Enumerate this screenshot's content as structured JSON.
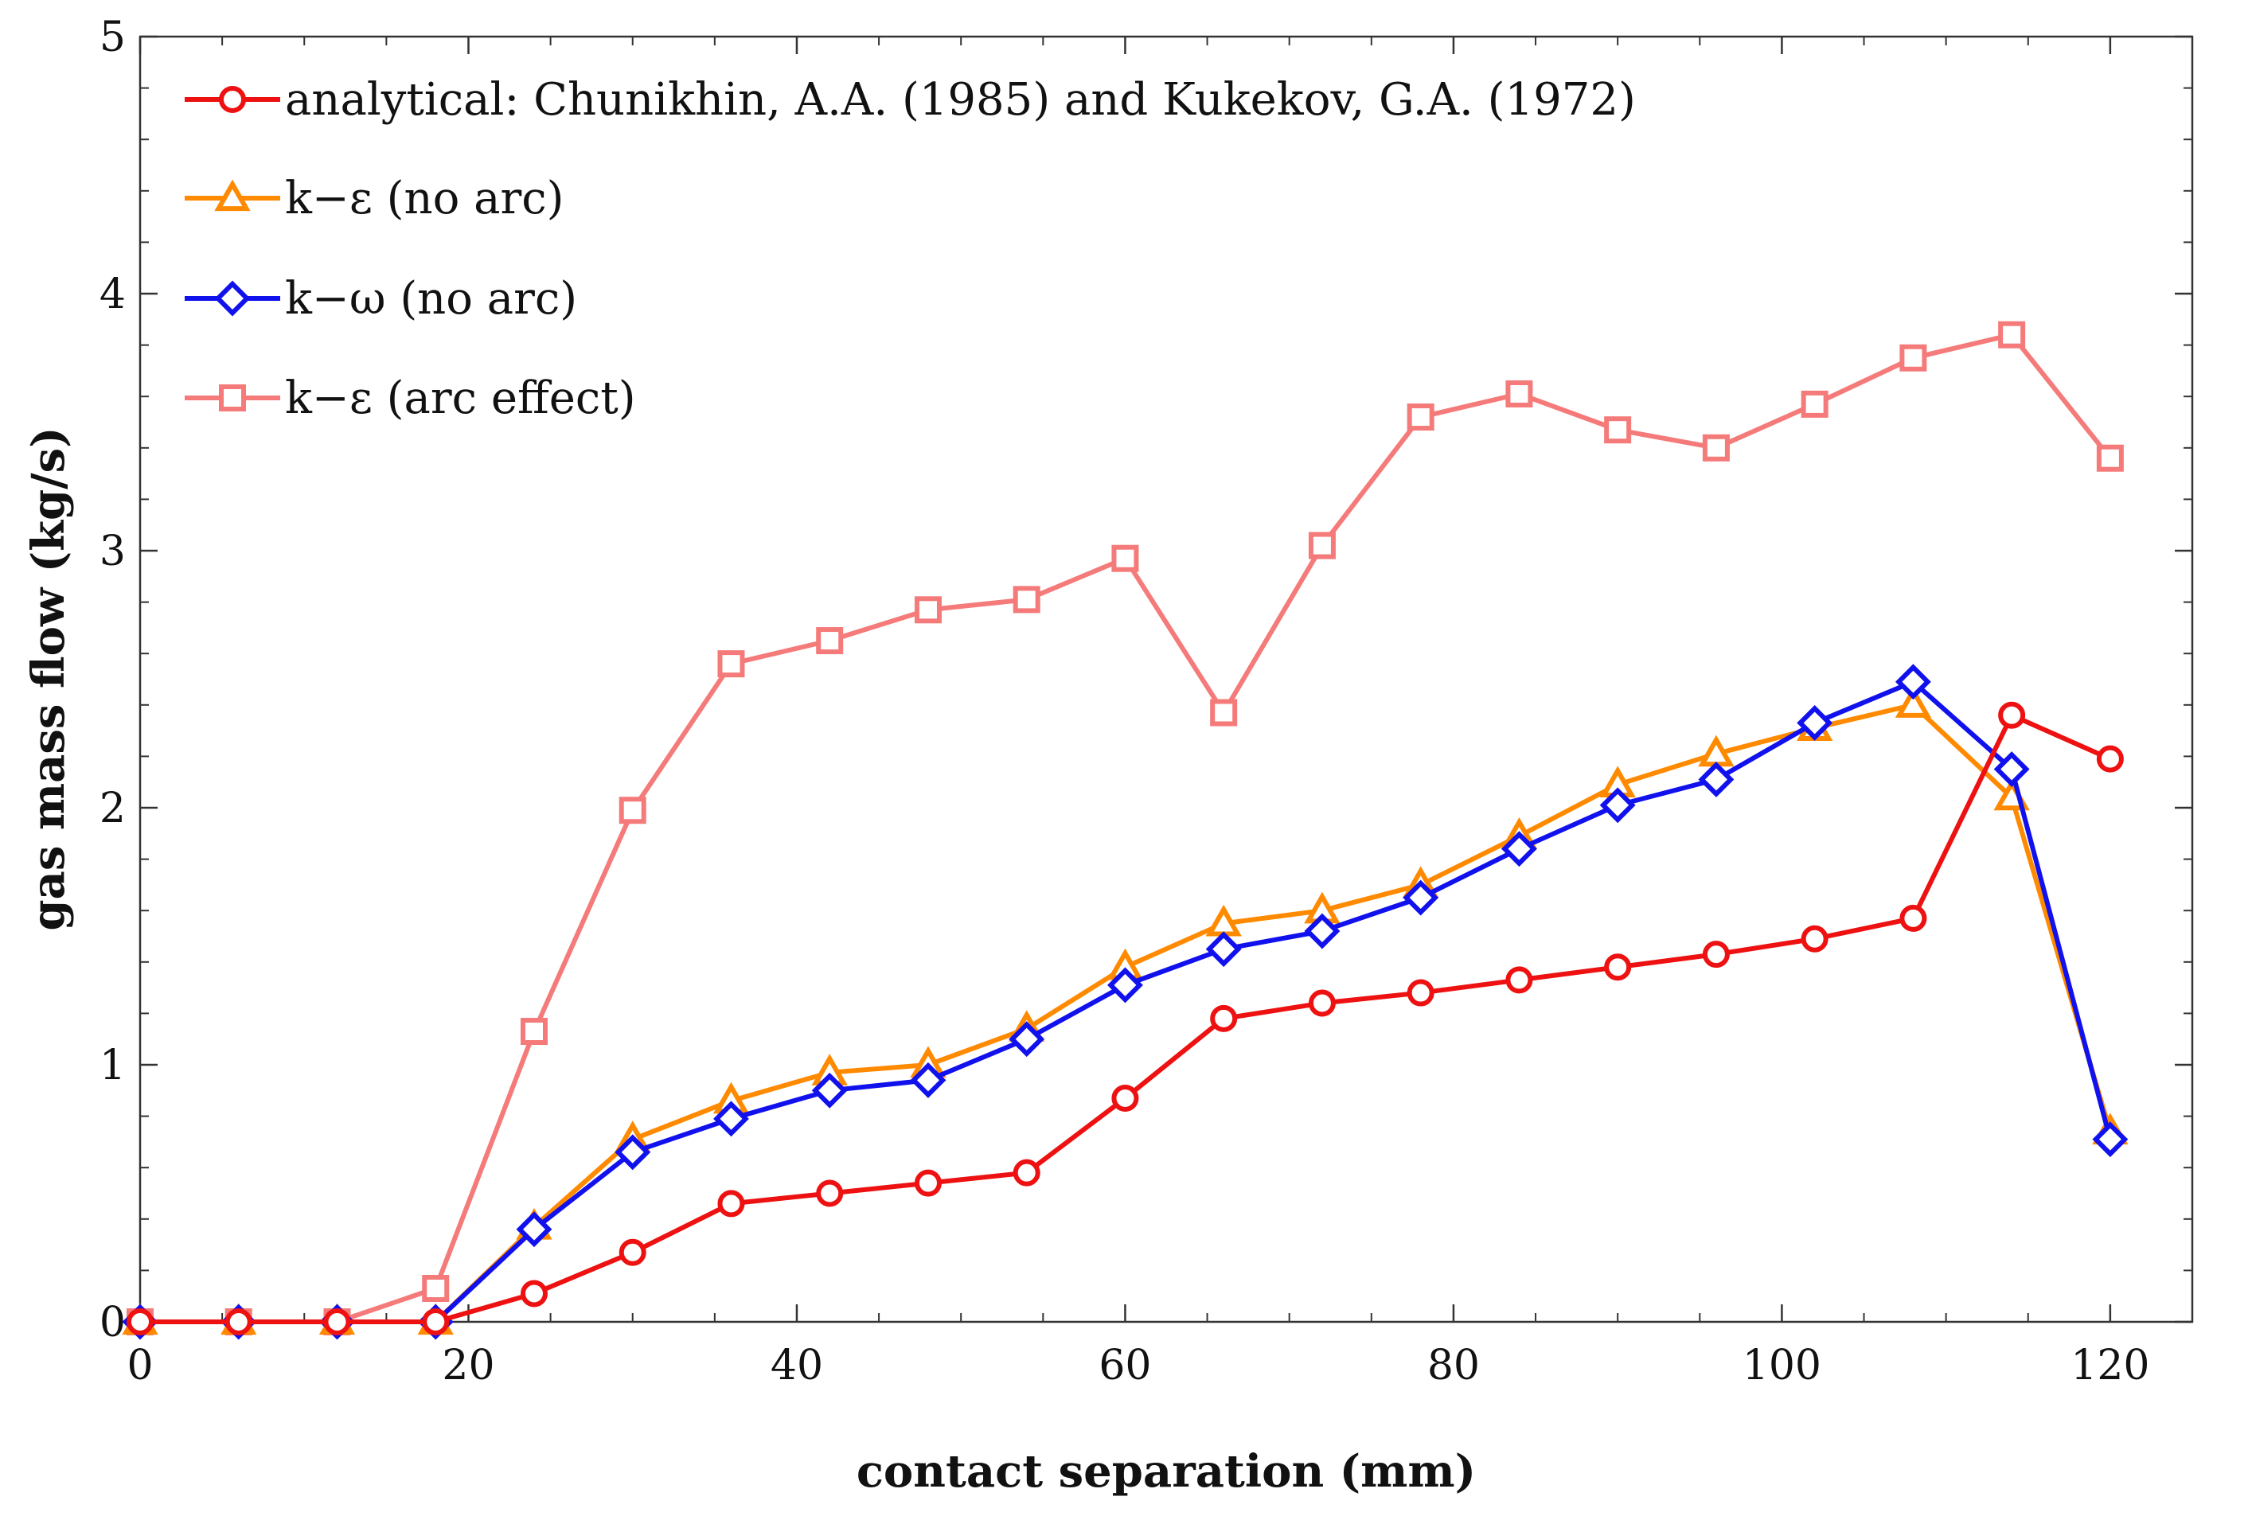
{
  "chart_data": {
    "type": "line",
    "title": "",
    "xlabel": "contact separation (mm)",
    "ylabel": "gas mass flow (kg/s)",
    "xlim": [
      0,
      125
    ],
    "ylim": [
      0,
      5
    ],
    "xticks": [
      0,
      20,
      40,
      60,
      80,
      100,
      120
    ],
    "yticks": [
      0,
      1,
      2,
      3,
      4,
      5
    ],
    "xtick_labels": [
      "0",
      "20",
      "40",
      "60",
      "80",
      "100",
      "120"
    ],
    "ytick_labels": [
      "0",
      "1",
      "2",
      "3",
      "4",
      "5"
    ],
    "legend_position": "top-left",
    "x": [
      0,
      6,
      12,
      18,
      24,
      30,
      36,
      42,
      48,
      54,
      60,
      66,
      72,
      78,
      84,
      90,
      96,
      102,
      108,
      114,
      120
    ],
    "series": [
      {
        "name": "analytical: Chunikhin, A.A. (1985) and Kukekov, G.A. (1972)",
        "color": "#ee1111",
        "marker": "circle",
        "values": [
          0,
          0,
          0,
          0,
          0.11,
          0.27,
          0.46,
          0.5,
          0.54,
          0.58,
          0.87,
          1.18,
          1.24,
          1.28,
          1.33,
          1.38,
          1.43,
          1.49,
          1.57,
          2.36,
          2.19
        ]
      },
      {
        "name": "k−ε (no arc)",
        "color": "#ff8a00",
        "marker": "triangle",
        "values": [
          0,
          0,
          0,
          0,
          0.37,
          0.71,
          0.86,
          0.97,
          1.0,
          1.14,
          1.38,
          1.55,
          1.6,
          1.7,
          1.89,
          2.09,
          2.21,
          2.31,
          2.4,
          2.04,
          0.74
        ]
      },
      {
        "name": "k−ω (no arc)",
        "color": "#1111ee",
        "marker": "diamond",
        "values": [
          0,
          0,
          0,
          0,
          0.36,
          0.66,
          0.79,
          0.9,
          0.94,
          1.1,
          1.31,
          1.45,
          1.52,
          1.65,
          1.84,
          2.01,
          2.11,
          2.33,
          2.49,
          2.15,
          0.71
        ]
      },
      {
        "name": "k−ε (arc effect)",
        "color": "#f57a7a",
        "marker": "square",
        "values": [
          0,
          0,
          0,
          0.13,
          1.13,
          1.99,
          2.56,
          2.65,
          2.77,
          2.81,
          2.97,
          2.37,
          3.02,
          3.52,
          3.61,
          3.47,
          3.4,
          3.57,
          3.75,
          3.84,
          3.36
        ]
      }
    ]
  }
}
